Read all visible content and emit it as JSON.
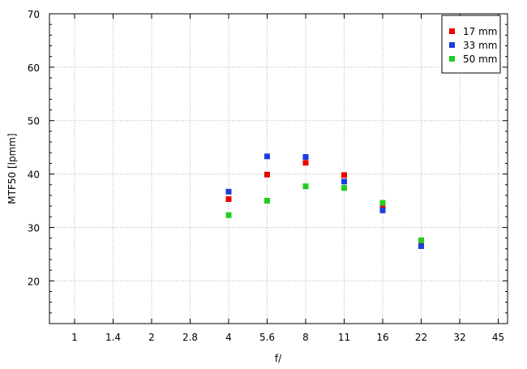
{
  "chart_data": {
    "type": "scatter",
    "title": "",
    "xlabel": "f/",
    "ylabel": "MTF50 [lpmm]",
    "x_categories": [
      "1",
      "1.4",
      "2",
      "2.8",
      "4",
      "5.6",
      "8",
      "11",
      "16",
      "22",
      "32",
      "45"
    ],
    "ylim": [
      12,
      70
    ],
    "yticks": [
      20,
      30,
      40,
      50,
      60,
      70
    ],
    "grid": true,
    "legend_position": "top-right",
    "series": [
      {
        "name": "17 mm",
        "color": "#ee0000",
        "points": [
          [
            "4",
            35.3
          ],
          [
            "5.6",
            39.9
          ],
          [
            "8",
            42.1
          ],
          [
            "11",
            39.8
          ],
          [
            "16",
            33.8
          ],
          [
            "22",
            26.9
          ]
        ]
      },
      {
        "name": "33 mm",
        "color": "#1a3ee0",
        "points": [
          [
            "4",
            36.7
          ],
          [
            "5.6",
            43.3
          ],
          [
            "8",
            43.2
          ],
          [
            "11",
            38.6
          ],
          [
            "16",
            33.2
          ],
          [
            "22",
            26.5
          ]
        ]
      },
      {
        "name": "50 mm",
        "color": "#22cc22",
        "points": [
          [
            "4",
            32.3
          ],
          [
            "5.6",
            35.0
          ],
          [
            "8",
            37.7
          ],
          [
            "11",
            37.4
          ],
          [
            "16",
            34.6
          ],
          [
            "22",
            27.6
          ]
        ]
      }
    ]
  }
}
